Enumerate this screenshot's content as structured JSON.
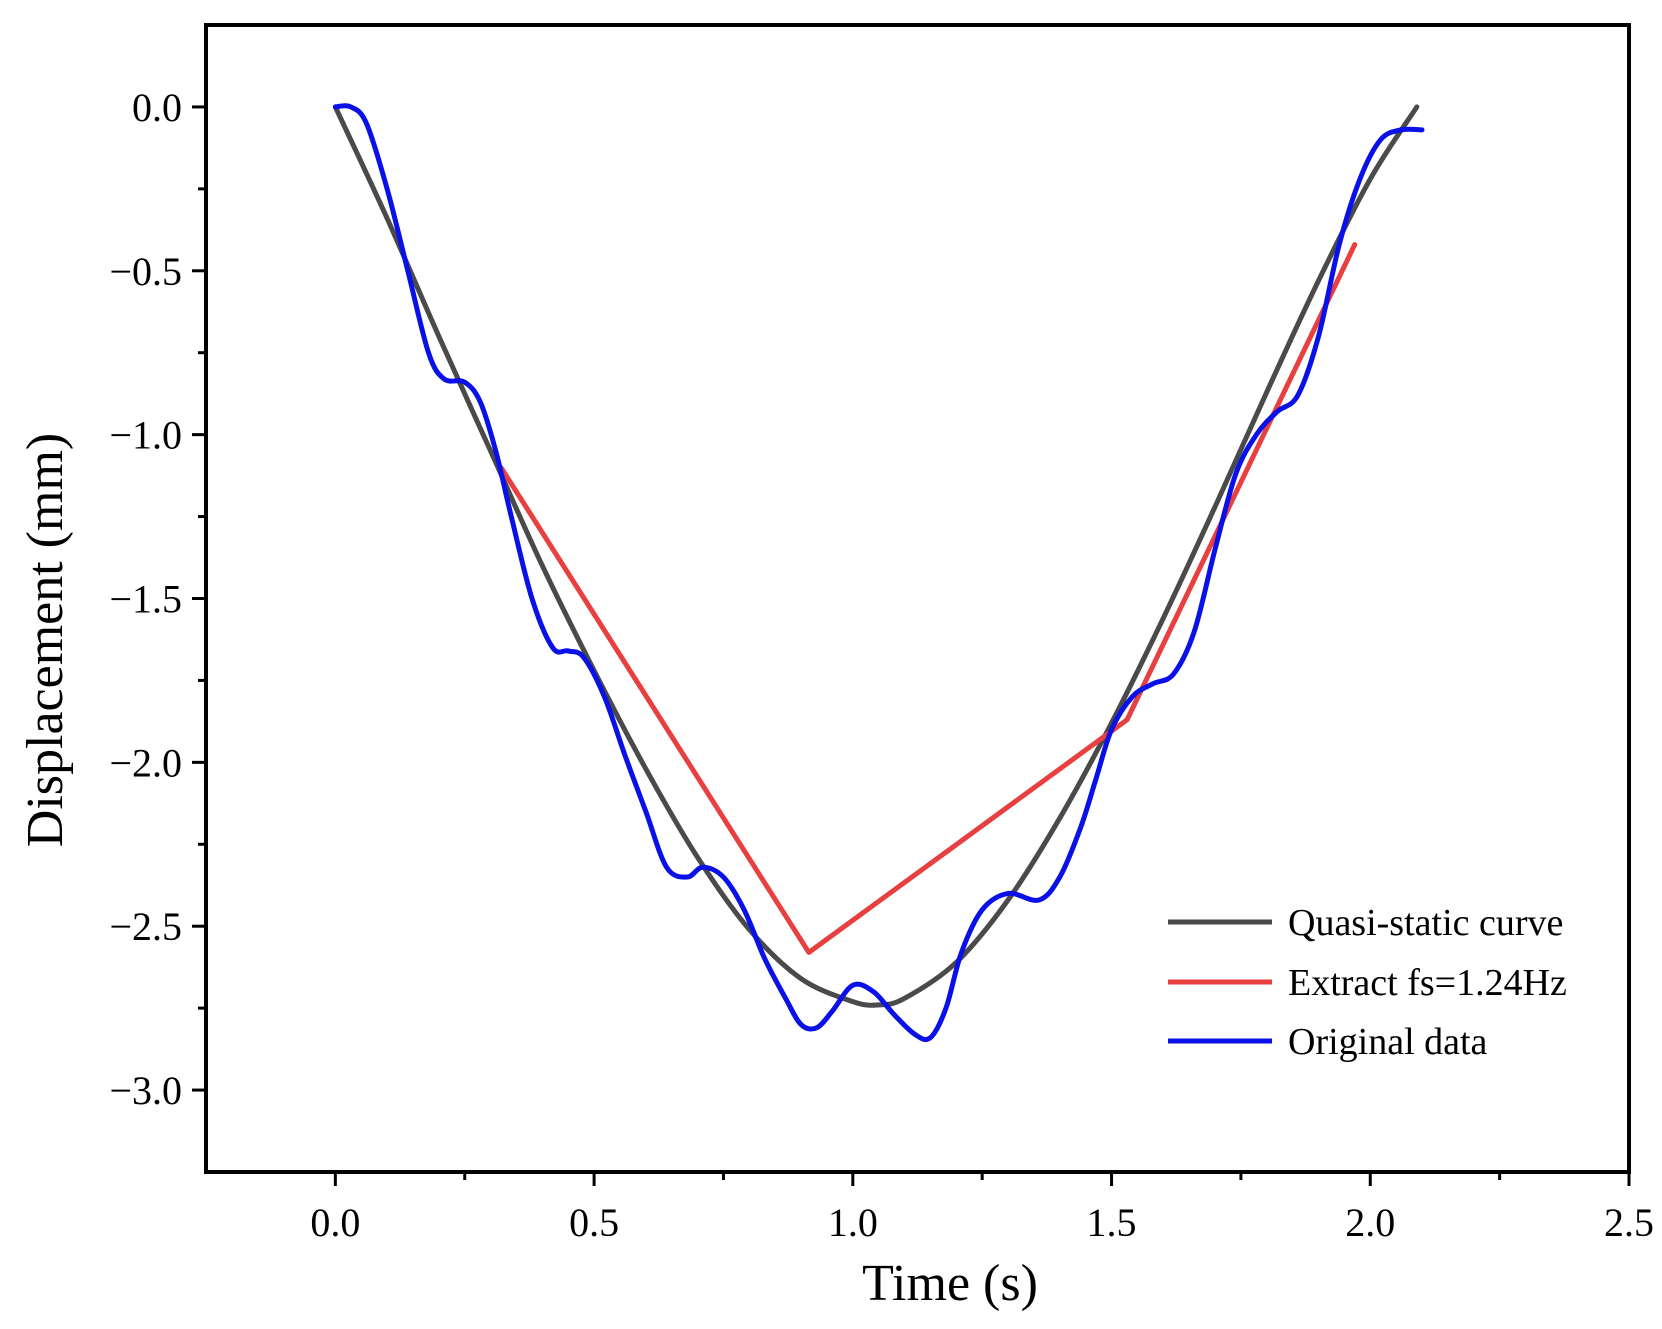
{
  "chart_data": {
    "type": "line",
    "title": "",
    "xlabel": "Time (s)",
    "ylabel": "Displacement (mm)",
    "xlim": [
      -0.25,
      2.5
    ],
    "ylim": [
      -3.25,
      0.25
    ],
    "xticks": [
      0.0,
      0.5,
      1.0,
      1.5,
      2.0,
      2.5
    ],
    "xtick_labels": [
      "0.0",
      "0.5",
      "1.0",
      "1.5",
      "2.0",
      "2.5"
    ],
    "yticks": [
      0.0,
      -0.5,
      -1.0,
      -1.5,
      -2.0,
      -2.5,
      -3.0
    ],
    "ytick_labels": [
      "0.0",
      "−0.5",
      "−1.0",
      "−1.5",
      "−2.0",
      "−2.5",
      "−3.0"
    ],
    "grid": false,
    "legend_position": "bottom-right",
    "series": [
      {
        "name": "Quasi-static curve",
        "color": "#4a4a4a",
        "x": [
          0.0,
          0.1,
          0.2,
          0.3,
          0.4,
          0.5,
          0.6,
          0.7,
          0.8,
          0.9,
          1.0,
          1.05,
          1.1,
          1.2,
          1.3,
          1.4,
          1.5,
          1.6,
          1.7,
          1.8,
          1.9,
          2.0,
          2.09
        ],
        "y": [
          0.0,
          -0.34,
          -0.7,
          -1.05,
          -1.4,
          -1.72,
          -2.02,
          -2.29,
          -2.51,
          -2.66,
          -2.73,
          -2.74,
          -2.72,
          -2.61,
          -2.42,
          -2.17,
          -1.88,
          -1.56,
          -1.22,
          -0.87,
          -0.53,
          -0.22,
          0.0
        ]
      },
      {
        "name": "Extract fs=1.24Hz",
        "color": "#e84040",
        "x": [
          0.32,
          0.915,
          1.53,
          1.97
        ],
        "y": [
          -1.1,
          -2.58,
          -1.87,
          -0.42
        ]
      },
      {
        "name": "Original data",
        "color": "#0a10e8",
        "x": [
          0.0,
          0.03,
          0.06,
          0.1,
          0.14,
          0.18,
          0.21,
          0.25,
          0.28,
          0.31,
          0.34,
          0.38,
          0.42,
          0.45,
          0.48,
          0.52,
          0.56,
          0.6,
          0.64,
          0.68,
          0.71,
          0.75,
          0.79,
          0.83,
          0.87,
          0.9,
          0.93,
          0.96,
          1.0,
          1.04,
          1.08,
          1.12,
          1.15,
          1.18,
          1.21,
          1.25,
          1.3,
          1.36,
          1.4,
          1.44,
          1.47,
          1.5,
          1.54,
          1.58,
          1.62,
          1.66,
          1.7,
          1.74,
          1.78,
          1.82,
          1.86,
          1.9,
          1.94,
          1.98,
          2.02,
          2.06,
          2.1
        ],
        "y": [
          0.0,
          0.0,
          -0.05,
          -0.25,
          -0.5,
          -0.75,
          -0.83,
          -0.84,
          -0.9,
          -1.05,
          -1.25,
          -1.5,
          -1.65,
          -1.66,
          -1.68,
          -1.8,
          -1.98,
          -2.15,
          -2.32,
          -2.35,
          -2.32,
          -2.35,
          -2.45,
          -2.6,
          -2.72,
          -2.8,
          -2.81,
          -2.76,
          -2.68,
          -2.7,
          -2.77,
          -2.83,
          -2.84,
          -2.75,
          -2.58,
          -2.45,
          -2.4,
          -2.42,
          -2.35,
          -2.2,
          -2.05,
          -1.9,
          -1.8,
          -1.76,
          -1.73,
          -1.6,
          -1.35,
          -1.12,
          -1.0,
          -0.93,
          -0.88,
          -0.7,
          -0.42,
          -0.22,
          -0.1,
          -0.07,
          -0.07
        ]
      }
    ]
  }
}
